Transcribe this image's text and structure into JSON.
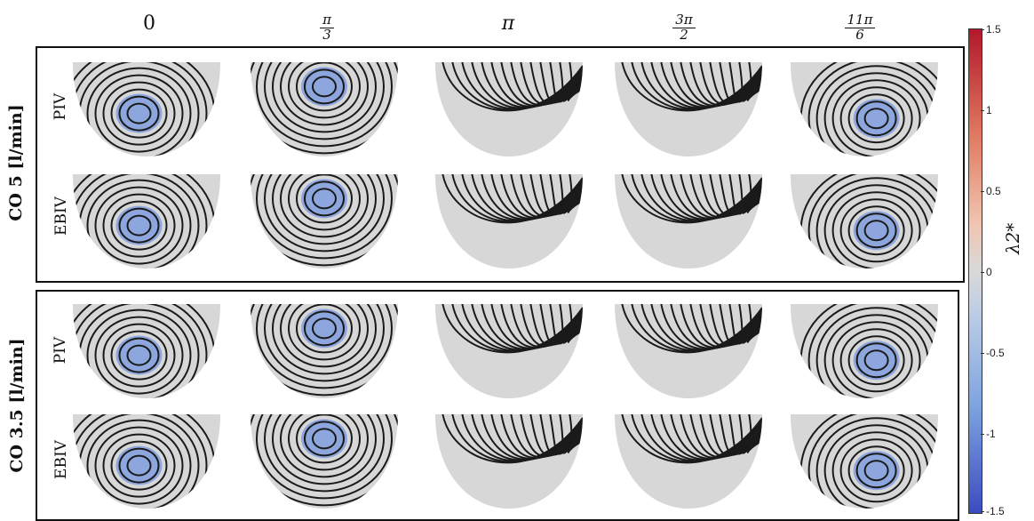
{
  "columns": [
    {
      "type": "plain",
      "text": "0"
    },
    {
      "type": "frac",
      "num": "π",
      "den": "3"
    },
    {
      "type": "plain",
      "text": "π"
    },
    {
      "type": "frac",
      "num": "3π",
      "den": "2"
    },
    {
      "type": "frac",
      "num": "11π",
      "den": "6"
    }
  ],
  "groups": [
    {
      "label": "CO 5 [l/min]",
      "rows": [
        "PIV",
        "EBIV"
      ]
    },
    {
      "label": "CO 3.5 [l/min]",
      "rows": [
        "PIV",
        "EBIV"
      ]
    }
  ],
  "colorbar": {
    "title": "λ2*",
    "ticks": [
      "1.5",
      "1",
      "0.5",
      "0",
      "-0.5",
      "-1",
      "-1.5"
    ],
    "colors": [
      "#b2182b",
      "#d9d9d9",
      "#3b4cc0"
    ]
  }
}
